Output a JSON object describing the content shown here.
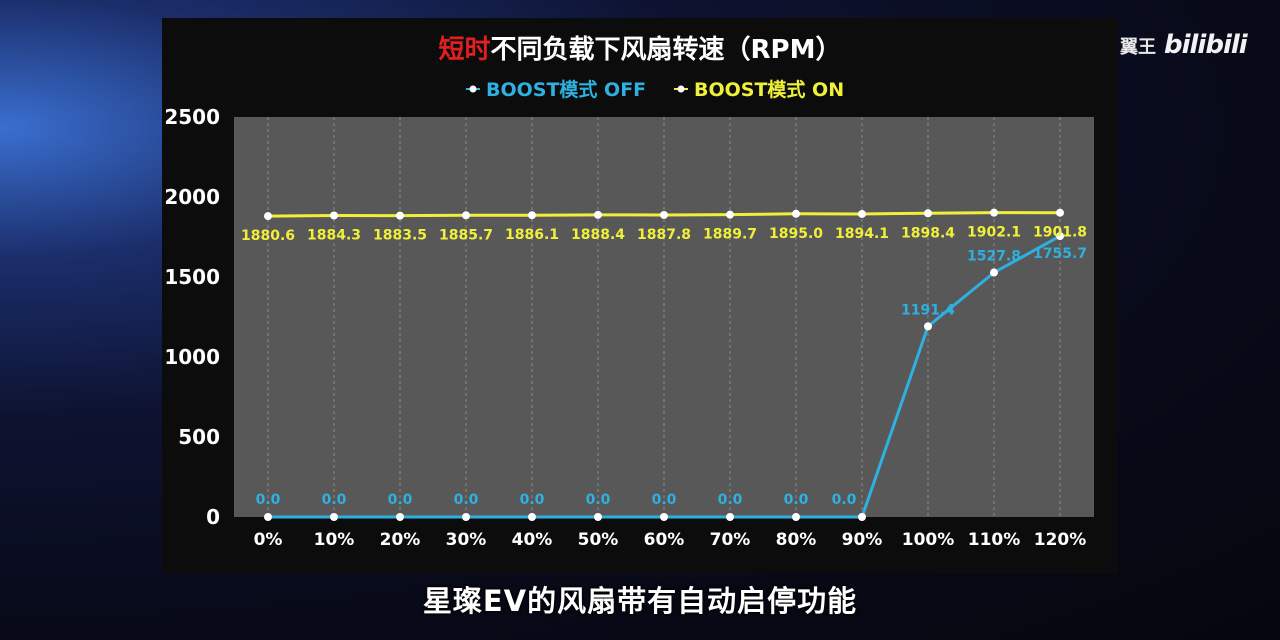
{
  "watermark": {
    "channel": "翼王",
    "logo": "bilibili"
  },
  "subtitle": "星璨EV的风扇带有自动启停功能",
  "colors": {
    "off": "#2eb0e0",
    "on": "#f0f03a",
    "title_highlight": "#e02020",
    "plot_bg": "#585858",
    "panel_bg": "#0c0c0c"
  },
  "chart_data": {
    "type": "line",
    "title_highlight": "短时",
    "title_rest": "不同负载下风扇转速（RPM）",
    "categories": [
      "0%",
      "10%",
      "20%",
      "30%",
      "40%",
      "50%",
      "60%",
      "70%",
      "80%",
      "90%",
      "100%",
      "110%",
      "120%"
    ],
    "ylim": [
      0,
      2500
    ],
    "yticks": [
      0,
      500,
      1000,
      1500,
      2000,
      2500
    ],
    "grid": "vertical dashed",
    "legend_position": "top-center",
    "series": [
      {
        "name": "BOOST模式 OFF",
        "color": "#2eb0e0",
        "values": [
          0.0,
          0.0,
          0.0,
          0.0,
          0.0,
          0.0,
          0.0,
          0.0,
          0.0,
          0.0,
          1191.4,
          1527.8,
          1755.7
        ],
        "labels": [
          "0.0",
          "0.0",
          "0.0",
          "0.0",
          "0.0",
          "0.0",
          "0.0",
          "0.0",
          "0.0",
          "0.0",
          "1191.4",
          "1527.8",
          "1755.7"
        ]
      },
      {
        "name": "BOOST模式 ON",
        "color": "#f0f03a",
        "values": [
          1880.6,
          1884.3,
          1883.5,
          1885.7,
          1886.1,
          1888.4,
          1887.8,
          1889.7,
          1895.0,
          1894.1,
          1898.4,
          1902.1,
          1901.8
        ],
        "labels": [
          "1880.6",
          "1884.3",
          "1883.5",
          "1885.7",
          "1886.1",
          "1888.4",
          "1887.8",
          "1889.7",
          "1895.0",
          "1894.1",
          "1898.4",
          "1902.1",
          "1901.8"
        ]
      }
    ]
  }
}
